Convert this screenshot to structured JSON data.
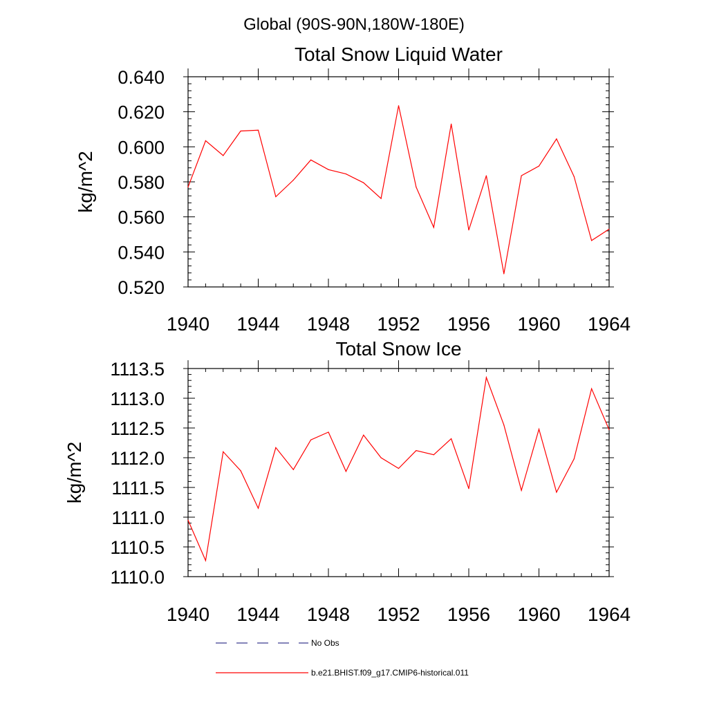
{
  "figure": {
    "header": "Global (90S-90N,180W-180E)",
    "legend": [
      {
        "label": "No Obs",
        "color": "#3b3b8f",
        "style": "dashed"
      },
      {
        "label": "b.e21.BHIST.f09_g17.CMIP6-historical.011",
        "color": "#ff0000",
        "style": "solid"
      }
    ]
  },
  "chart_data": [
    {
      "type": "line",
      "title": "Total Snow Liquid Water",
      "ylabel": "kg/m^2",
      "xlim": [
        1940,
        1964
      ],
      "ylim": [
        0.52,
        0.64
      ],
      "xticks": [
        1940,
        1944,
        1948,
        1952,
        1956,
        1960,
        1964
      ],
      "xtick_labels": [
        "1940",
        "1944",
        "1948",
        "1952",
        "1956",
        "1960",
        "1964"
      ],
      "yticks": [
        0.52,
        0.54,
        0.56,
        0.58,
        0.6,
        0.62,
        0.64
      ],
      "ytick_labels": [
        "0.520",
        "0.540",
        "0.560",
        "0.580",
        "0.600",
        "0.620",
        "0.640"
      ],
      "grid": false,
      "series": [
        {
          "color": "#ff0000",
          "x": [
            1940,
            1941,
            1942,
            1943,
            1944,
            1945,
            1946,
            1947,
            1948,
            1949,
            1950,
            1951,
            1952,
            1953,
            1954,
            1955,
            1956,
            1957,
            1958,
            1959,
            1960,
            1961,
            1962,
            1963,
            1964
          ],
          "y": [
            0.577,
            0.6035,
            0.595,
            0.609,
            0.6095,
            0.5715,
            0.581,
            0.5925,
            0.587,
            0.5845,
            0.5795,
            0.5705,
            0.6235,
            0.577,
            0.554,
            0.613,
            0.5525,
            0.5835,
            0.5275,
            0.5835,
            0.589,
            0.6045,
            0.583,
            0.5465,
            0.553
          ]
        }
      ]
    },
    {
      "type": "line",
      "title": "Total Snow Ice",
      "ylabel": "kg/m^2",
      "xlim": [
        1940,
        1964
      ],
      "ylim": [
        1110.0,
        1113.5
      ],
      "xticks": [
        1940,
        1944,
        1948,
        1952,
        1956,
        1960,
        1964
      ],
      "xtick_labels": [
        "1940",
        "1944",
        "1948",
        "1952",
        "1956",
        "1960",
        "1964"
      ],
      "yticks": [
        1110.0,
        1110.5,
        1111.0,
        1111.5,
        1112.0,
        1112.5,
        1113.0,
        1113.5
      ],
      "ytick_labels": [
        "1110.0",
        "1110.5",
        "1111.0",
        "1111.5",
        "1112.0",
        "1112.5",
        "1113.0",
        "1113.5"
      ],
      "grid": false,
      "series": [
        {
          "color": "#ff0000",
          "x": [
            1940,
            1941,
            1942,
            1943,
            1944,
            1945,
            1946,
            1947,
            1948,
            1949,
            1950,
            1951,
            1952,
            1953,
            1954,
            1955,
            1956,
            1957,
            1958,
            1959,
            1960,
            1961,
            1962,
            1963,
            1964
          ],
          "y": [
            1110.95,
            1110.27,
            1112.1,
            1111.78,
            1111.15,
            1112.17,
            1111.8,
            1112.3,
            1112.43,
            1111.77,
            1112.38,
            1112.0,
            1111.82,
            1112.12,
            1112.05,
            1112.32,
            1111.48,
            1113.35,
            1112.55,
            1111.45,
            1112.48,
            1111.42,
            1111.98,
            1113.16,
            1112.47
          ]
        }
      ]
    }
  ]
}
